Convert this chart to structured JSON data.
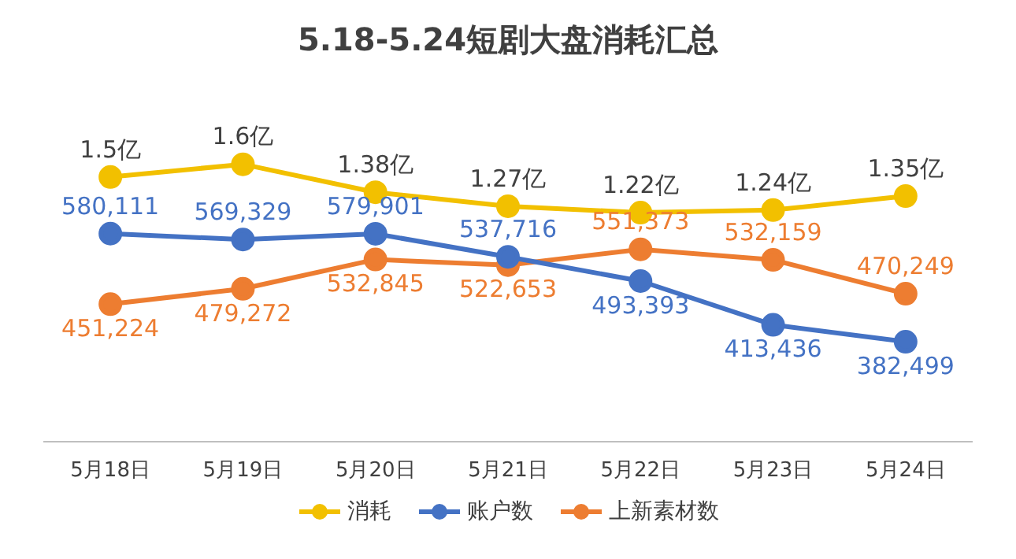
{
  "chart_data": [
    {
      "type": "line",
      "title": "5.18-5.24短剧大盘消耗汇总",
      "categories": [
        null,
        null,
        null,
        null,
        null,
        null,
        null
      ],
      "series": [
        {
          "name": "消耗",
          "color": "#f2c000",
          "values": [
            1.5,
            1.6,
            1.38,
            1.27,
            1.22,
            1.24,
            1.35
          ],
          "value_labels": [
            "1.5亿",
            "1.6亿",
            "1.38亿",
            "1.27亿",
            "1.22亿",
            "1.24亿",
            "1.35亿"
          ]
        }
      ],
      "tick_labels": false,
      "legend": "bottom",
      "marker": "circle",
      "line_style": "solid"
    },
    {
      "type": "line",
      "categories": [
        "5月18日",
        "5月19日",
        "5月20日",
        "5月21日",
        "5月22日",
        "5月23日",
        "5月24日"
      ],
      "series": [
        {
          "name": "账户数",
          "color": "#4472c4",
          "values": [
            580111,
            569329,
            579901,
            537716,
            493393,
            413436,
            382499
          ],
          "value_labels": [
            "580,111",
            "569,329",
            "579,901",
            "537,716",
            "493,393",
            "413,436",
            "382,499"
          ]
        },
        {
          "name": "上新素材数",
          "color": "#ed7d31",
          "values": [
            451224,
            479272,
            532845,
            522653,
            551373,
            532159,
            470249
          ],
          "value_labels": [
            "451,224",
            "479,272",
            "532,845",
            "522,653",
            "551,373",
            "532,159",
            "470,249"
          ]
        }
      ],
      "tick_labels": "x",
      "legend": "bottom",
      "marker": "circle",
      "line_style": "solid"
    }
  ]
}
